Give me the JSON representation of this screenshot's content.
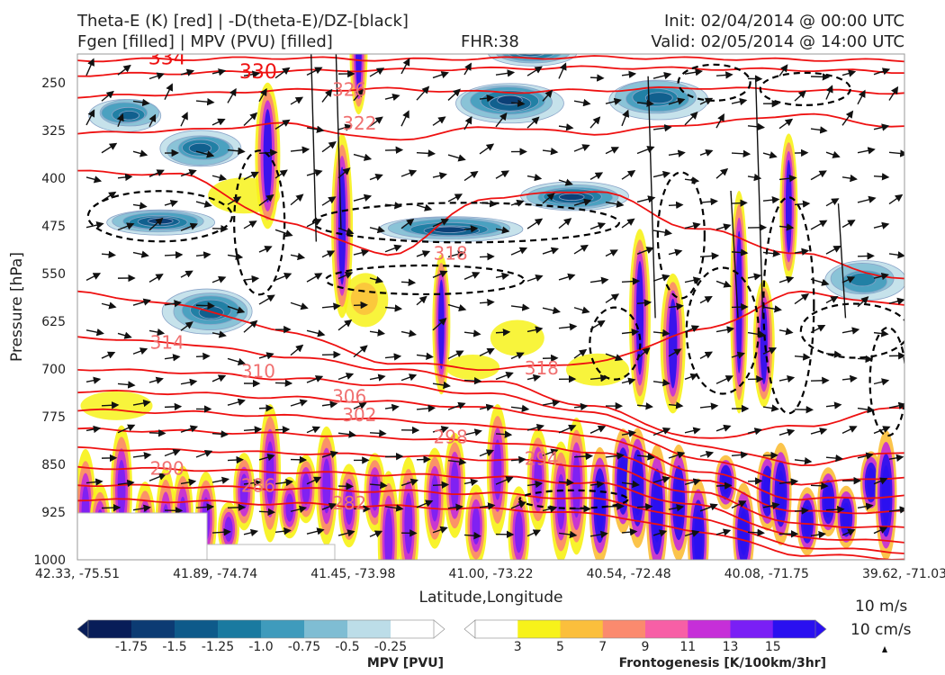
{
  "header": {
    "line1_left": "Theta-E (K) [red] | -D(theta-E)/DZ-[black]",
    "line2_left": "Fgen [filled] | MPV (PVU) [filled]",
    "fhr": "FHR:38",
    "init": "Init: 02/04/2014 @ 00:00 UTC",
    "valid": "Valid: 02/05/2014 @ 14:00 UTC"
  },
  "colors": {
    "theta_e": "#ee1111",
    "stability": "#000000",
    "mpv_scale": [
      "#081d58",
      "#0c3b73",
      "#0e5a8a",
      "#1a7aa0",
      "#3f9bbc",
      "#7fbdd3",
      "#bcdde8",
      "#ffffff"
    ],
    "fgen_scale": [
      "#ffffff",
      "#f7f21a",
      "#fbbf3c",
      "#fb8a6e",
      "#f75fa6",
      "#c62fd8",
      "#7a1ff5",
      "#2a10f0"
    ]
  },
  "chart_data": {
    "type": "cross-section",
    "title": "",
    "xlabel": "Latitude,Longitude",
    "ylabel": "Pressure [hPa]",
    "x_ticks": [
      "42.33, -75.51",
      "41.89, -74.74",
      "41.45, -73.98",
      "41.00, -73.22",
      "40.54, -72.48",
      "40.08, -71.75",
      "39.62, -71.03"
    ],
    "y_ticks": [
      250,
      325,
      400,
      475,
      550,
      625,
      700,
      775,
      850,
      925,
      1000
    ],
    "ylim": [
      1000,
      205
    ],
    "theta_e_contours": [
      {
        "label": "334",
        "level_hpa": [
          215,
          213,
          211,
          214,
          212,
          210,
          212,
          214,
          215
        ]
      },
      {
        "label": "330",
        "level_hpa": [
          238,
          235,
          232,
          230,
          228,
          226,
          228,
          230,
          233
        ]
      },
      {
        "label": "326",
        "level_hpa": [
          272,
          268,
          262,
          260,
          265,
          262,
          258,
          262,
          266
        ]
      },
      {
        "label": "322",
        "level_hpa": [
          330,
          325,
          315,
          340,
          320,
          330,
          315,
          300,
          320
        ]
      },
      {
        "label": "318",
        "level_hpa": [
          390,
          395,
          470,
          520,
          430,
          420,
          480,
          520,
          560
        ]
      },
      {
        "label": "318",
        "level_hpa": [
          580,
          600,
          640,
          690,
          700,
          690,
          640,
          580,
          600
        ]
      },
      {
        "label": "314",
        "level_hpa": [
          650,
          660,
          680,
          700,
          720,
          760,
          810,
          790,
          760
        ]
      },
      {
        "label": "310",
        "level_hpa": [
          700,
          705,
          715,
          725,
          740,
          770,
          820,
          850,
          830
        ]
      },
      {
        "label": "306",
        "level_hpa": [
          735,
          738,
          745,
          752,
          762,
          785,
          840,
          880,
          870
        ]
      },
      {
        "label": "302",
        "level_hpa": [
          765,
          768,
          774,
          780,
          790,
          805,
          860,
          905,
          900
        ]
      },
      {
        "label": "298",
        "level_hpa": [
          795,
          798,
          802,
          808,
          815,
          830,
          875,
          925,
          925
        ]
      },
      {
        "label": "294",
        "level_hpa": [
          825,
          828,
          832,
          836,
          842,
          852,
          895,
          945,
          950
        ]
      },
      {
        "label": "290",
        "level_hpa": [
          855,
          858,
          862,
          866,
          870,
          880,
          915,
          965,
          972
        ]
      },
      {
        "label": "286",
        "level_hpa": [
          882,
          885,
          888,
          892,
          896,
          905,
          935,
          980,
          988
        ]
      },
      {
        "label": "282",
        "level_hpa": [
          905,
          908,
          912,
          916,
          920,
          928,
          955,
          992,
          998
        ]
      }
    ],
    "wind_vector_reference": {
      "horizontal": "10 m/s",
      "vertical": "10 cm/s"
    },
    "colorbars": [
      {
        "title": "MPV [PVU]",
        "ticks": [
          "-1.75",
          "-1.5",
          "-1.25",
          "-1.0",
          "-0.75",
          "-0.5",
          "-0.25"
        ]
      },
      {
        "title": "Frontogenesis [K/100km/3hr]",
        "ticks": [
          "3",
          "5",
          "7",
          "9",
          "11",
          "13",
          "15"
        ]
      }
    ],
    "grid": false
  }
}
